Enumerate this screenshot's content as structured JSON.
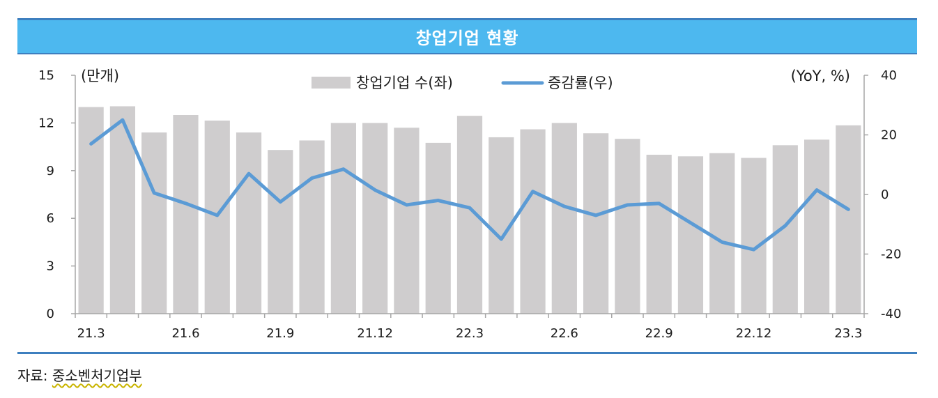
{
  "header": {
    "title": "창업기업 현황"
  },
  "source": {
    "label": "자료:",
    "name": "중소벤처기업부"
  },
  "colors": {
    "bar": "#cfcdce",
    "line": "#5b9bd5",
    "axis": "#a6a6a6",
    "header_bg": "#4db8ef",
    "rule": "#3d7fbf"
  },
  "chart_data": {
    "type": "bar+line",
    "left_unit_label": "(만개)",
    "right_unit_label": "(YoY, %)",
    "legend": [
      {
        "name": "창업기업 수(좌)",
        "kind": "bar"
      },
      {
        "name": "증감률(우)",
        "kind": "line"
      }
    ],
    "categories": [
      "21.3",
      "21.4",
      "21.5",
      "21.6",
      "21.7",
      "21.8",
      "21.9",
      "21.10",
      "21.11",
      "21.12",
      "22.1",
      "22.2",
      "22.3",
      "22.4",
      "22.5",
      "22.6",
      "22.7",
      "22.8",
      "22.9",
      "22.10",
      "22.11",
      "22.12",
      "23.1",
      "23.2",
      "23.3"
    ],
    "x_tick_labels": [
      {
        "index": 0,
        "label": "21.3"
      },
      {
        "index": 3,
        "label": "21.6"
      },
      {
        "index": 6,
        "label": "21.9"
      },
      {
        "index": 9,
        "label": "21.12"
      },
      {
        "index": 12,
        "label": "22.3"
      },
      {
        "index": 15,
        "label": "22.6"
      },
      {
        "index": 18,
        "label": "22.9"
      },
      {
        "index": 21,
        "label": "22.12"
      },
      {
        "index": 24,
        "label": "23.3"
      }
    ],
    "bars": {
      "name": "창업기업 수(좌)",
      "values": [
        13.0,
        13.05,
        11.4,
        12.5,
        12.15,
        11.4,
        10.3,
        10.9,
        12.0,
        12.0,
        11.7,
        10.75,
        12.45,
        11.1,
        11.6,
        12.0,
        11.35,
        11.0,
        10.0,
        9.9,
        10.1,
        9.8,
        10.6,
        10.95,
        11.85
      ]
    },
    "line": {
      "name": "증감률(우)",
      "values": [
        17,
        25,
        0.5,
        -3,
        -7,
        7,
        -2.5,
        5.5,
        8.5,
        1.5,
        -3.5,
        -2,
        -4.5,
        -15,
        1,
        -4,
        -7,
        -3.5,
        -3,
        -9.5,
        -16,
        -18.5,
        -10.5,
        1.5,
        -5
      ]
    },
    "y_left": {
      "ticks": [
        0,
        3,
        6,
        9,
        12,
        15
      ],
      "ylim": [
        0,
        15
      ]
    },
    "y_right": {
      "ticks": [
        -40,
        -20,
        0,
        20,
        40
      ],
      "ylim": [
        -40,
        40
      ]
    }
  }
}
